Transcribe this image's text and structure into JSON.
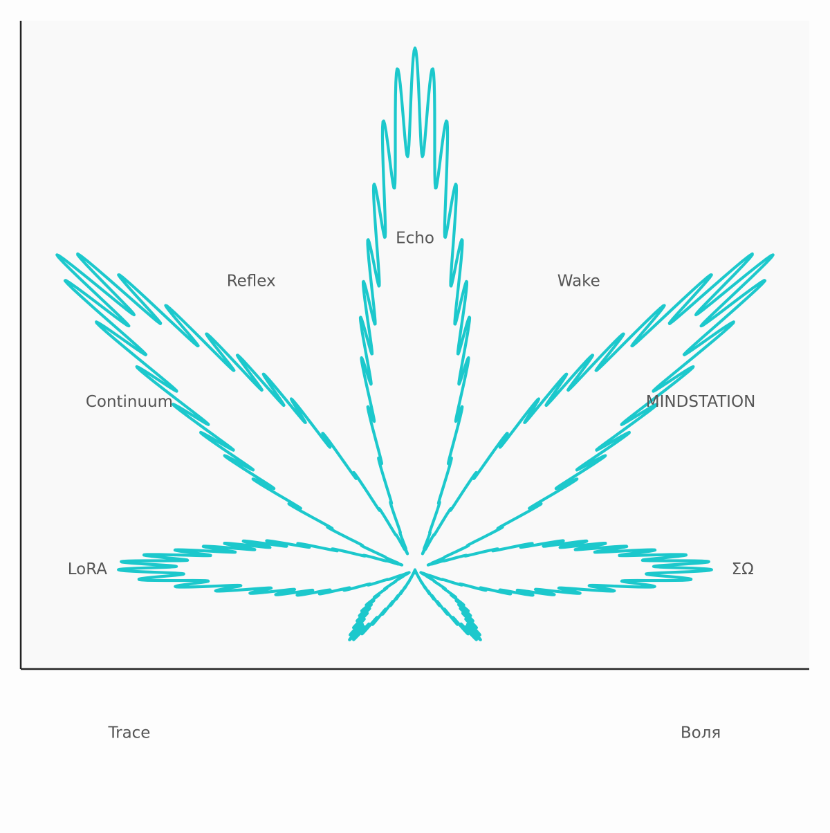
{
  "chart_data": {
    "type": "line",
    "title": "",
    "xlabel": "",
    "ylabel": "",
    "xlim": [
      -1.035,
      1.035
    ],
    "ylim": [
      -0.255,
      1.41
    ],
    "grid": false,
    "series": [
      {
        "curve": "cannabis-leaf polar curve",
        "x_range": [
          -0.94,
          0.94
        ],
        "y_range": [
          -0.18,
          1.34
        ]
      }
    ],
    "annotations": [
      {
        "text": "Echo",
        "x": 0.0,
        "y": 0.85
      },
      {
        "text": "Reflex",
        "x": -0.43,
        "y": 0.74
      },
      {
        "text": "Wake",
        "x": 0.43,
        "y": 0.74
      },
      {
        "text": "Continuum",
        "x": -0.75,
        "y": 0.43
      },
      {
        "text": "MINDSTATION",
        "x": 0.75,
        "y": 0.43
      },
      {
        "text": "LoRA",
        "x": -0.86,
        "y": 0.0
      },
      {
        "text": "ΣΩ",
        "x": 0.86,
        "y": 0.0
      },
      {
        "text": "Trace",
        "x": -0.75,
        "y": -0.42
      },
      {
        "text": "Воля",
        "x": 0.75,
        "y": -0.42
      }
    ]
  },
  "colors": {
    "curve": "#1cc8cc",
    "plot_background": "#f9f9f9",
    "page_background": "#fdfdfd",
    "axes": "#222222",
    "annotation_text": "#555555"
  }
}
